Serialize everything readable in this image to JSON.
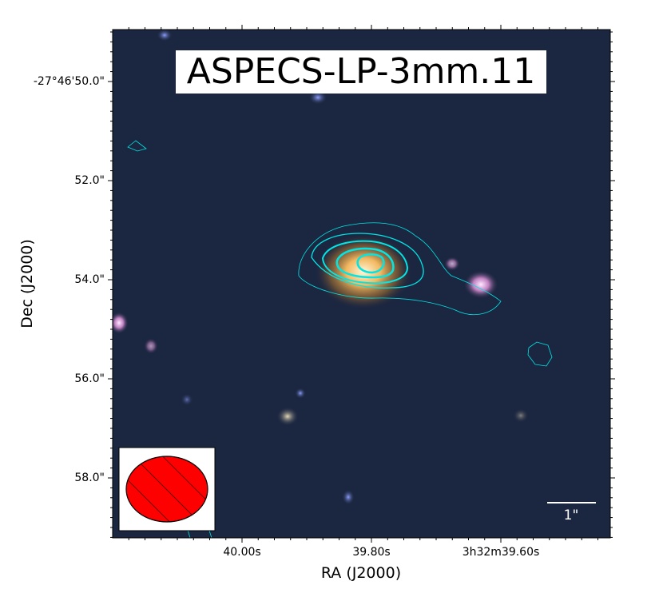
{
  "title": "ASPECS-LP-3mm.11",
  "x_axis": {
    "label": "RA (J2000)",
    "ticks": [
      "40.00s",
      "39.80s",
      "3h32m39.60s"
    ]
  },
  "y_axis": {
    "label": "Dec (J2000)",
    "ticks": [
      "-27°46'50.0\"",
      "52.0\"",
      "54.0\"",
      "56.0\"",
      "58.0\""
    ]
  },
  "scale_bar": {
    "label": "1\""
  }
}
